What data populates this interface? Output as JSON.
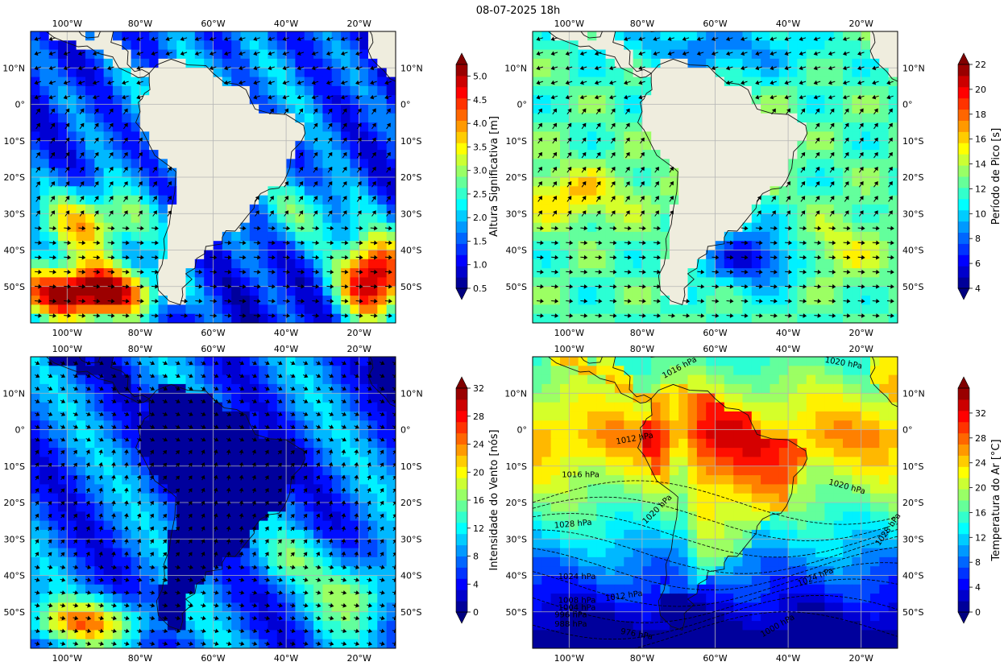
{
  "title": "08-07-2025 18h",
  "map_extent": {
    "lon": [
      -110,
      -10
    ],
    "lat": [
      -60,
      20
    ]
  },
  "lon_ticks": [
    {
      "value": -100,
      "label": "100°W"
    },
    {
      "value": -80,
      "label": "80°W"
    },
    {
      "value": -60,
      "label": "60°W"
    },
    {
      "value": -40,
      "label": "40°W"
    },
    {
      "value": -20,
      "label": "20°W"
    }
  ],
  "lat_ticks": [
    {
      "value": 10,
      "label": "10°N"
    },
    {
      "value": 0,
      "label": "0°"
    },
    {
      "value": -10,
      "label": "10°S"
    },
    {
      "value": -20,
      "label": "20°S"
    },
    {
      "value": -30,
      "label": "30°S"
    },
    {
      "value": -40,
      "label": "40°S"
    },
    {
      "value": -50,
      "label": "50°S"
    }
  ],
  "panels": [
    {
      "id": "wave-height",
      "colorbar_label": "Altura Significativa [m]",
      "range": [
        0.5,
        5.25
      ],
      "ticks": [
        "0.5",
        "1.0",
        "1.5",
        "2.0",
        "2.5",
        "3.0",
        "3.5",
        "4.0",
        "4.5",
        "5.0"
      ],
      "tick_values": [
        0.5,
        1.0,
        1.5,
        2.0,
        2.5,
        3.0,
        3.5,
        4.0,
        4.5,
        5.0
      ],
      "land_color": "#efedde",
      "field": "wave"
    },
    {
      "id": "peak-period",
      "colorbar_label": "Período de Pico [s]",
      "range": [
        4,
        22
      ],
      "ticks": [
        "4",
        "6",
        "8",
        "10",
        "12",
        "14",
        "16",
        "18",
        "20",
        "22"
      ],
      "tick_values": [
        4,
        6,
        8,
        10,
        12,
        14,
        16,
        18,
        20,
        22
      ],
      "land_color": "#efedde",
      "field": "period"
    },
    {
      "id": "wind-speed",
      "colorbar_label": "Intensidade do Vento [nós]",
      "range": [
        0,
        32
      ],
      "ticks": [
        "0",
        "4",
        "8",
        "12",
        "16",
        "20",
        "24",
        "28",
        "32"
      ],
      "tick_values": [
        0,
        4,
        8,
        12,
        16,
        20,
        24,
        28,
        32
      ],
      "land_color": "",
      "field": "wind"
    },
    {
      "id": "air-temperature",
      "colorbar_label": "Temperatura do Ar [°C]",
      "range": [
        0,
        36
      ],
      "ticks": [
        "0",
        "4",
        "8",
        "12",
        "16",
        "20",
        "24",
        "28",
        "32"
      ],
      "tick_values": [
        0,
        4,
        8,
        12,
        16,
        20,
        24,
        28,
        32
      ],
      "land_color": "",
      "field": "temp"
    }
  ],
  "pressure_labels": [
    {
      "text": "1020 hPa",
      "lon": -30,
      "lat": 18.5,
      "rot": -10
    },
    {
      "text": "1016 hPa",
      "lon": -74,
      "lat": 14,
      "rot": 28
    },
    {
      "text": "1012 hPa",
      "lon": -87,
      "lat": -4,
      "rot": 10
    },
    {
      "text": "1016 hPa",
      "lon": -102,
      "lat": -13,
      "rot": 0
    },
    {
      "text": "1020 hPa",
      "lon": -29,
      "lat": -15,
      "rot": -15
    },
    {
      "text": "1020 hPa",
      "lon": -79,
      "lat": -26,
      "rot": 45
    },
    {
      "text": "1028 hPa",
      "lon": -104,
      "lat": -27,
      "rot": 5
    },
    {
      "text": "1028 hPa",
      "lon": -15,
      "lat": -32,
      "rot": 55
    },
    {
      "text": "1024 hPa",
      "lon": -103,
      "lat": -41,
      "rot": 0
    },
    {
      "text": "1024 hPa",
      "lon": -37,
      "lat": -43,
      "rot": 22
    },
    {
      "text": "1012 hPa",
      "lon": -90,
      "lat": -47,
      "rot": 8
    },
    {
      "text": "1008 hPa",
      "lon": -103,
      "lat": -47.5,
      "rot": 0
    },
    {
      "text": "1004 hPa",
      "lon": -103,
      "lat": -49.5,
      "rot": 0
    },
    {
      "text": "996 hPa",
      "lon": -104,
      "lat": -51.5,
      "rot": 0
    },
    {
      "text": "988 hPa",
      "lon": -104,
      "lat": -54,
      "rot": 0
    },
    {
      "text": "976 hPa",
      "lon": -86,
      "lat": -56,
      "rot": -10
    },
    {
      "text": "1000 hPa",
      "lon": -47,
      "lat": -57,
      "rot": 30
    }
  ]
}
